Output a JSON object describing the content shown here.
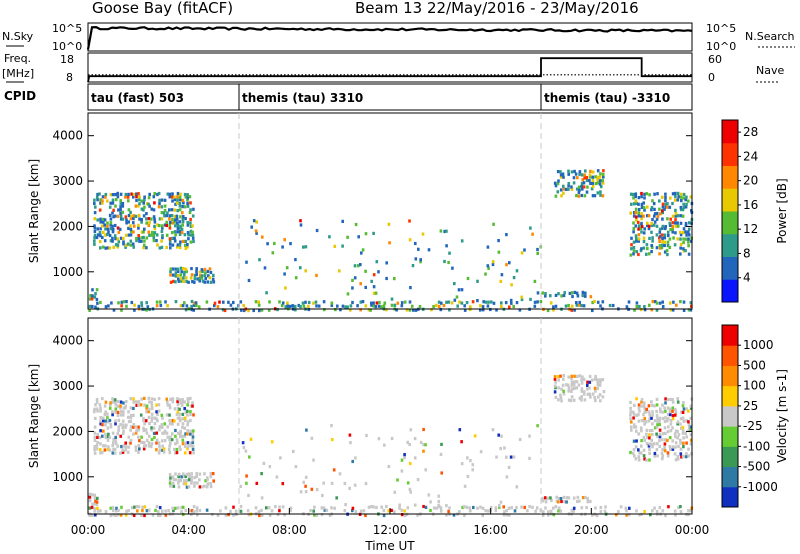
{
  "header": {
    "station": "Goose Bay (fitACF)",
    "title": "Beam 13 22/May/2016 - 23/May/2016"
  },
  "top_panel": {
    "left_label": "N.Sky",
    "left_ticks": [
      "10^5",
      "10^0"
    ],
    "right_ticks": [
      "10^5",
      "10^0"
    ],
    "right_label": "N.Search",
    "nsky_level": 0.82,
    "nsearch_level": 0.72
  },
  "freq_panel": {
    "left_label_1": "Freq.",
    "left_label_2": "[MHz]",
    "left_ticks": [
      "18",
      "8"
    ],
    "right_ticks": [
      "60",
      "0"
    ],
    "right_label": "Nave",
    "freq_level": 0.2,
    "nave_base": 0.25,
    "nave_peak_start_hours": 18.0,
    "nave_peak_end_hours": 22.0,
    "nave_peak_level": 0.82
  },
  "cpid_panel": {
    "label": "CPID",
    "segments": [
      {
        "label": "tau (fast) 503",
        "start_hours": 0
      },
      {
        "label": "themis (tau) 3310",
        "start_hours": 6
      },
      {
        "label": "themis (tau) -3310",
        "start_hours": 18
      }
    ]
  },
  "chart_data": [
    {
      "type": "heatmap",
      "quantity": "Power",
      "ylabel": "Slant Range [km]",
      "ylim": [
        180,
        4500
      ],
      "yticks": [
        "4000",
        "3000",
        "2000",
        "1000"
      ],
      "colorbar": {
        "label": "Power [dB]",
        "ticks": [
          "28",
          "24",
          "20",
          "16",
          "12",
          "8",
          "4"
        ],
        "range": [
          0,
          30
        ],
        "colors": [
          "#0a14ff",
          "#2266bb",
          "#2e9a8a",
          "#55bb33",
          "#e8c800",
          "#ff8800",
          "#ff3300",
          "#ee0000"
        ]
      },
      "regions": [
        {
          "x": [
            0.0,
            0.4
          ],
          "y": [
            180,
            700
          ],
          "density": 0.6
        },
        {
          "x": [
            0.2,
            4.2
          ],
          "y": [
            1550,
            2800
          ],
          "density": 0.5
        },
        {
          "x": [
            3.2,
            5.0
          ],
          "y": [
            800,
            1150
          ],
          "density": 0.7
        },
        {
          "x": [
            0.0,
            24.0
          ],
          "y": [
            180,
            420
          ],
          "density": 0.35
        },
        {
          "x": [
            6.0,
            18.0
          ],
          "y": [
            400,
            2200
          ],
          "density": 0.04
        },
        {
          "x": [
            18.5,
            20.5
          ],
          "y": [
            2700,
            3300
          ],
          "density": 0.5
        },
        {
          "x": [
            18.0,
            20.0
          ],
          "y": [
            480,
            620
          ],
          "density": 0.6
        },
        {
          "x": [
            21.5,
            24.0
          ],
          "y": [
            1400,
            2800
          ],
          "density": 0.5
        }
      ]
    },
    {
      "type": "heatmap",
      "quantity": "Velocity",
      "ylabel": "Slant Range [km]",
      "ylim": [
        180,
        4500
      ],
      "yticks": [
        "4000",
        "3000",
        "2000",
        "1000"
      ],
      "xlabel": "Time UT",
      "xticks": [
        "00:00",
        "04:00",
        "08:00",
        "12:00",
        "16:00",
        "20:00",
        "00:00"
      ],
      "xlim_hours": [
        0,
        24
      ],
      "colorbar": {
        "label": "Velocity [m s-1]",
        "ticks": [
          "1000",
          "500",
          "100",
          "25",
          "-25",
          "-100",
          "-500",
          "-1000"
        ],
        "colors": [
          "#1030c0",
          "#2f7aa5",
          "#3a9a55",
          "#66cc33",
          "#c8c8c8",
          "#ffcc00",
          "#ff8c00",
          "#ff5500",
          "#ee0000"
        ]
      }
    }
  ]
}
